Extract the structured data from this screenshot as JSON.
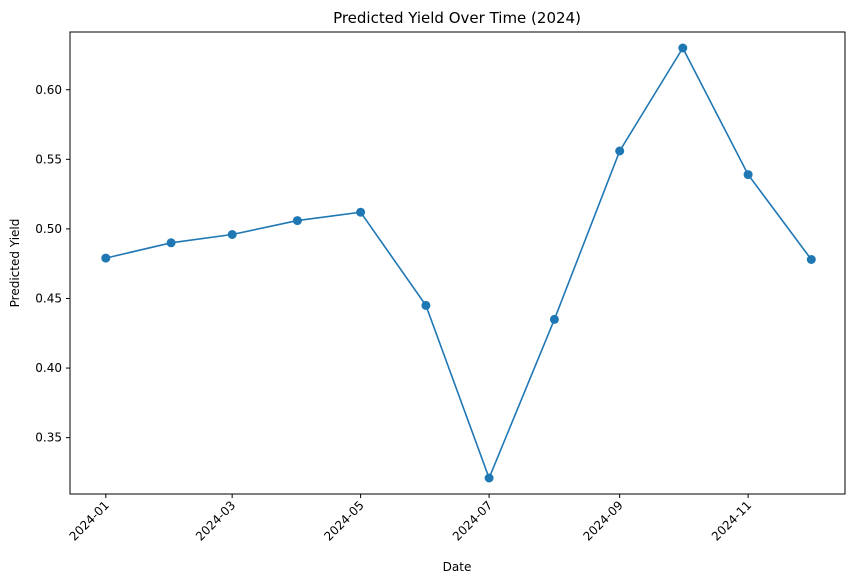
{
  "chart_data": {
    "type": "line",
    "title": "Predicted Yield Over Time (2024)",
    "xlabel": "Date",
    "ylabel": "Predicted Yield",
    "x": [
      "2024-01-01",
      "2024-02-01",
      "2024-03-01",
      "2024-04-01",
      "2024-05-01",
      "2024-06-01",
      "2024-07-01",
      "2024-08-01",
      "2024-09-01",
      "2024-10-01",
      "2024-11-01",
      "2024-12-01"
    ],
    "series": [
      {
        "values": [
          0.479,
          0.49,
          0.496,
          0.506,
          0.512,
          0.445,
          0.321,
          0.435,
          0.556,
          0.63,
          0.539,
          0.478
        ],
        "color": "#1f77b4",
        "marker": "circle"
      }
    ],
    "x_ticks": [
      "2024-01",
      "2024-03",
      "2024-05",
      "2024-07",
      "2024-09",
      "2024-11"
    ],
    "y_ticks": [
      "0.35",
      "0.40",
      "0.45",
      "0.50",
      "0.55",
      "0.60"
    ],
    "ylim": [
      0.3095,
      0.6415
    ],
    "xlim": [
      "2023-12-15",
      "2024-12-17"
    ],
    "grid": false,
    "legend": "none"
  }
}
